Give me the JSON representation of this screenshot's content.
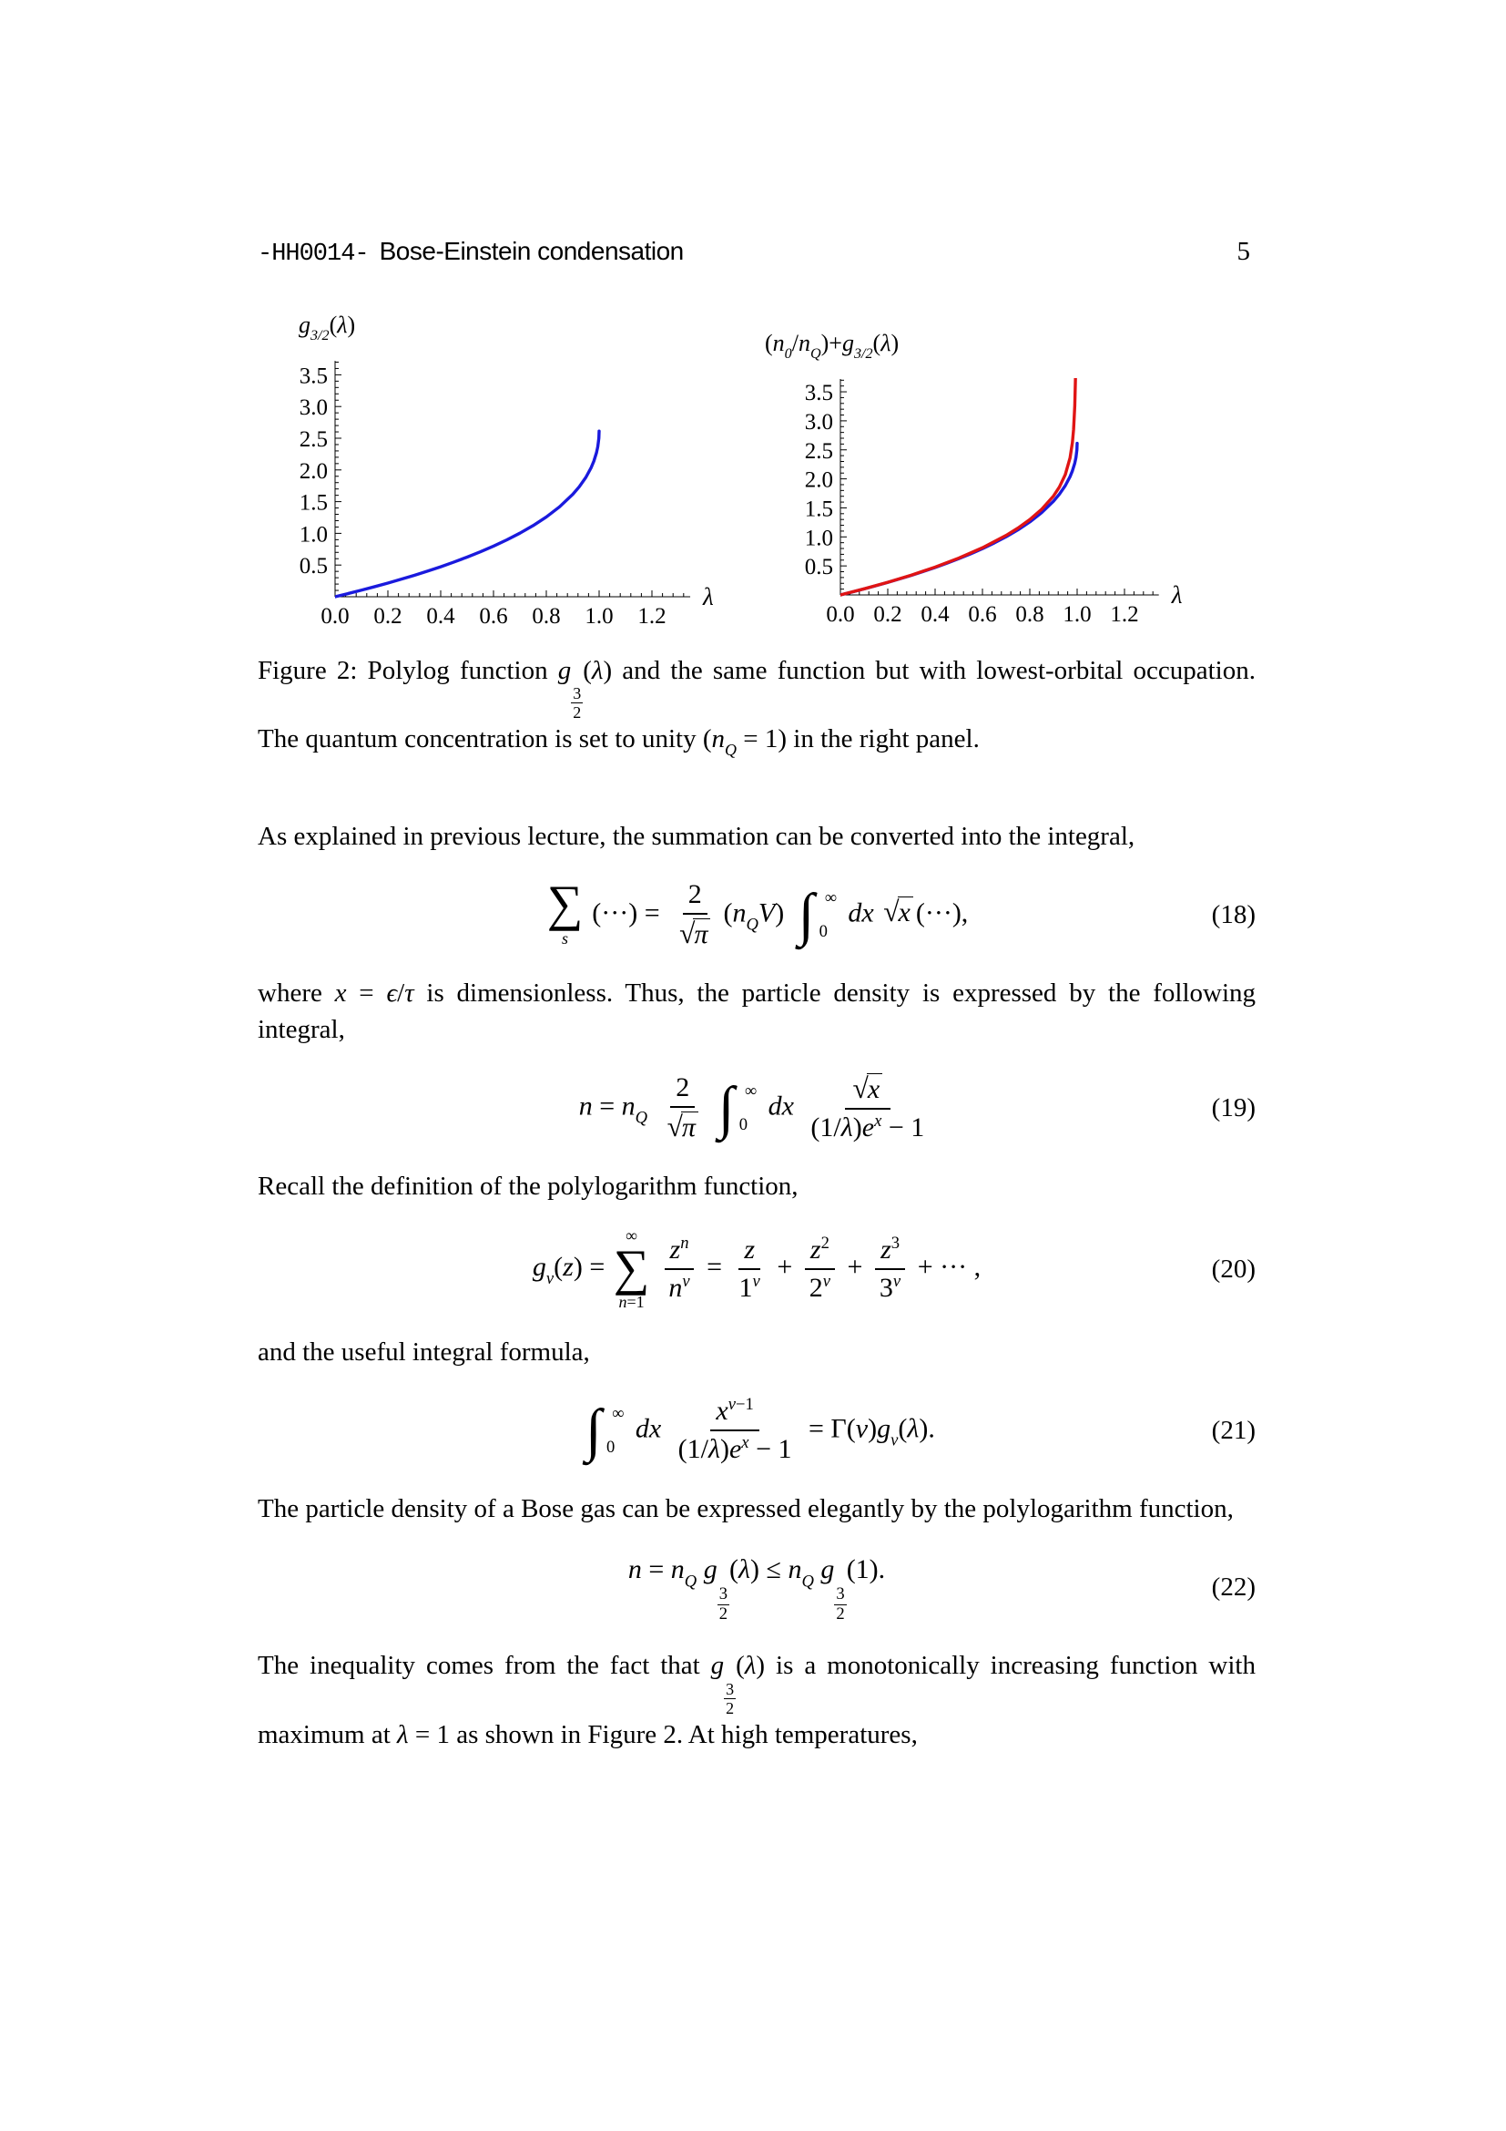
{
  "header": {
    "course_code": "-HH0014-",
    "title": "Bose-Einstein condensation",
    "page_number": "5"
  },
  "caption": {
    "segments": [
      {
        "text": "Figure 2:  Polylog function "
      },
      {
        "math": [
          {
            "sub": {
              "b": [
                {
                  "i": "g"
                }
              ],
              "x": [
                {
                  "sfrac": {
                    "n": "3",
                    "d": "2"
                  }
                }
              ]
            }
          },
          "(",
          {
            "i": "λ"
          },
          ")"
        ]
      },
      {
        "text": " and the same function but with lowest-orbital occupation.  The quantum concentration is set to unity ("
      },
      {
        "math": [
          {
            "sub": {
              "b": [
                {
                  "i": "n"
                }
              ],
              "x": [
                {
                  "i": "Q"
                }
              ]
            }
          },
          " = 1"
        ]
      },
      {
        "text": ") in the right panel."
      }
    ]
  },
  "paragraphs": [
    {
      "segments": [
        {
          "text": "As explained in previous lecture, the summation can be converted into the integral,"
        }
      ]
    },
    {
      "segments": [
        {
          "text": "where "
        },
        {
          "math": [
            {
              "i": "x"
            },
            " = ",
            {
              "i": "ϵ"
            },
            "/",
            {
              "i": "τ"
            }
          ]
        },
        {
          "text": " is dimensionless.  Thus, the particle density is expressed by the following integral,"
        }
      ]
    },
    {
      "segments": [
        {
          "text": "Recall the definition of the polylogarithm function,"
        }
      ]
    },
    {
      "segments": [
        {
          "text": "and the useful integral formula,"
        }
      ]
    },
    {
      "segments": [
        {
          "text": "The particle density of a Bose gas can be expressed elegantly by the polylogarithm function,"
        }
      ]
    },
    {
      "segments": [
        {
          "text": "The inequality comes from the fact that "
        },
        {
          "math": [
            {
              "sub": {
                "b": [
                  {
                    "i": "g"
                  }
                ],
                "x": [
                  {
                    "sfrac": {
                      "n": "3",
                      "d": "2"
                    }
                  }
                ]
              }
            },
            "(",
            {
              "i": "λ"
            },
            ")"
          ]
        },
        {
          "text": " is a monotonically increasing function with maximum at "
        },
        {
          "math": [
            {
              "i": "λ"
            },
            " = 1"
          ]
        },
        {
          "text": " as shown in Figure 2.  At high temperatures,"
        }
      ]
    }
  ],
  "equations": [
    {
      "number": "(18)",
      "math": [
        {
          "sum": {
            "lo": [
              {
                "i": "s"
              }
            ]
          }
        },
        "(···) = ",
        {
          "frac": {
            "n": [
              "2"
            ],
            "d": [
              {
                "sqrt": [
                  {
                    "i": "π"
                  }
                ]
              }
            ]
          }
        },
        "(",
        {
          "sub": {
            "b": [
              {
                "i": "n"
              }
            ],
            "x": [
              {
                "i": "Q"
              }
            ]
          }
        },
        {
          "i": "V"
        },
        ") ",
        {
          "int": {
            "lo": [
              "0"
            ],
            "hi": [
              "∞"
            ]
          }
        },
        {
          "i": "dx"
        },
        " ",
        {
          "sqrt": [
            {
              "i": "x"
            }
          ]
        },
        "(···),"
      ]
    },
    {
      "number": "(19)",
      "math": [
        {
          "i": "n"
        },
        " = ",
        {
          "sub": {
            "b": [
              {
                "i": "n"
              }
            ],
            "x": [
              {
                "i": "Q"
              }
            ]
          }
        },
        " ",
        {
          "frac": {
            "n": [
              "2"
            ],
            "d": [
              {
                "sqrt": [
                  {
                    "i": "π"
                  }
                ]
              }
            ]
          }
        },
        {
          "int": {
            "lo": [
              "0"
            ],
            "hi": [
              "∞"
            ]
          }
        },
        {
          "i": "dx"
        },
        " ",
        {
          "frac": {
            "n": [
              {
                "sqrt": [
                  {
                    "i": "x"
                  }
                ]
              }
            ],
            "d": [
              "(1/",
              {
                "i": "λ"
              },
              ")",
              {
                "sup": {
                  "b": [
                    {
                      "i": "e"
                    }
                  ],
                  "x": [
                    {
                      "i": "x"
                    }
                  ]
                }
              },
              " − 1"
            ]
          }
        }
      ]
    },
    {
      "number": "(20)",
      "math": [
        {
          "sub": {
            "b": [
              {
                "i": "g"
              }
            ],
            "x": [
              {
                "i": "ν"
              }
            ]
          }
        },
        "(",
        {
          "i": "z"
        },
        ") = ",
        {
          "sum": {
            "lo": [
              {
                "i": "n"
              },
              "=1"
            ],
            "hi": [
              "∞"
            ]
          }
        },
        {
          "frac": {
            "n": [
              {
                "sup": {
                  "b": [
                    {
                      "i": "z"
                    }
                  ],
                  "x": [
                    {
                      "i": "n"
                    }
                  ]
                }
              }
            ],
            "d": [
              {
                "sup": {
                  "b": [
                    {
                      "i": "n"
                    }
                  ],
                  "x": [
                    {
                      "i": "ν"
                    }
                  ]
                }
              }
            ]
          }
        },
        " = ",
        {
          "frac": {
            "n": [
              {
                "i": "z"
              }
            ],
            "d": [
              {
                "sup": {
                  "b": [
                    "1"
                  ],
                  "x": [
                    {
                      "i": "ν"
                    }
                  ]
                }
              }
            ]
          }
        },
        " + ",
        {
          "frac": {
            "n": [
              {
                "sup": {
                  "b": [
                    {
                      "i": "z"
                    }
                  ],
                  "x": [
                    "2"
                  ]
                }
              }
            ],
            "d": [
              {
                "sup": {
                  "b": [
                    "2"
                  ],
                  "x": [
                    {
                      "i": "ν"
                    }
                  ]
                }
              }
            ]
          }
        },
        " + ",
        {
          "frac": {
            "n": [
              {
                "sup": {
                  "b": [
                    {
                      "i": "z"
                    }
                  ],
                  "x": [
                    "3"
                  ]
                }
              }
            ],
            "d": [
              {
                "sup": {
                  "b": [
                    "3"
                  ],
                  "x": [
                    {
                      "i": "ν"
                    }
                  ]
                }
              }
            ]
          }
        },
        " + ··· ,"
      ]
    },
    {
      "number": "(21)",
      "math": [
        {
          "int": {
            "lo": [
              "0"
            ],
            "hi": [
              "∞"
            ]
          }
        },
        {
          "i": "dx"
        },
        " ",
        {
          "frac": {
            "n": [
              {
                "sup": {
                  "b": [
                    {
                      "i": "x"
                    }
                  ],
                  "x": [
                    {
                      "i": "ν"
                    },
                    "−1"
                  ]
                }
              }
            ],
            "d": [
              "(1/",
              {
                "i": "λ"
              },
              ")",
              {
                "sup": {
                  "b": [
                    {
                      "i": "e"
                    }
                  ],
                  "x": [
                    {
                      "i": "x"
                    }
                  ]
                }
              },
              " − 1"
            ]
          }
        },
        " = Γ(",
        {
          "i": "ν"
        },
        ")",
        {
          "sub": {
            "b": [
              {
                "i": "g"
              }
            ],
            "x": [
              {
                "i": "ν"
              }
            ]
          }
        },
        "(",
        {
          "i": "λ"
        },
        ")."
      ]
    },
    {
      "number": "(22)",
      "math": [
        {
          "i": "n"
        },
        " = ",
        {
          "sub": {
            "b": [
              {
                "i": "n"
              }
            ],
            "x": [
              {
                "i": "Q"
              }
            ]
          }
        },
        " ",
        {
          "sub": {
            "b": [
              {
                "i": "g"
              }
            ],
            "x": [
              {
                "sfrac": {
                  "n": "3",
                  "d": "2"
                }
              }
            ]
          }
        },
        "(",
        {
          "i": "λ"
        },
        ") ≤ ",
        {
          "sub": {
            "b": [
              {
                "i": "n"
              }
            ],
            "x": [
              {
                "i": "Q"
              }
            ]
          }
        },
        " ",
        {
          "sub": {
            "b": [
              {
                "i": "g"
              }
            ],
            "x": [
              {
                "sfrac": {
                  "n": "3",
                  "d": "2"
                }
              }
            ]
          }
        },
        "(1)."
      ]
    }
  ],
  "chart_data": [
    {
      "type": "line",
      "title": "g3/2(λ)",
      "title_math": [
        {
          "sub": {
            "b": [
              {
                "i": "g"
              }
            ],
            "x": [
              {
                "i": "3/2"
              }
            ]
          }
        },
        "(",
        {
          "i": "λ"
        },
        ")"
      ],
      "xlabel": "λ",
      "xlim": [
        0,
        1.345
      ],
      "ylim": [
        0,
        3.72
      ],
      "xticks": [
        0.0,
        0.2,
        0.4,
        0.6,
        0.8,
        1.0,
        1.2
      ],
      "yticks": [
        0.5,
        1.0,
        1.5,
        2.0,
        2.5,
        3.0,
        3.5
      ],
      "x_major_step": 0.2,
      "x_minor_step": 0.04,
      "y_major_step": 0.5,
      "y_minor_step": 0.1,
      "grid": false,
      "legend": "none",
      "series": [
        {
          "name": "polylog-g32",
          "color": "#1a1add",
          "x": [
            0,
            0.05,
            0.1,
            0.15,
            0.2,
            0.25,
            0.3,
            0.35,
            0.4,
            0.45,
            0.5,
            0.55,
            0.6,
            0.65,
            0.7,
            0.75,
            0.8,
            0.85,
            0.9,
            0.925,
            0.95,
            0.97,
            0.98,
            0.99,
            0.995,
            0.999,
            1.0
          ],
          "y": [
            0,
            0.051,
            0.104,
            0.159,
            0.216,
            0.276,
            0.338,
            0.404,
            0.473,
            0.547,
            0.625,
            0.708,
            0.798,
            0.896,
            1.003,
            1.122,
            1.258,
            1.418,
            1.614,
            1.736,
            1.884,
            2.038,
            2.138,
            2.271,
            2.368,
            2.501,
            2.612
          ]
        }
      ]
    },
    {
      "type": "line",
      "title": "(n0/nQ)+g3/2(λ)",
      "title_math": [
        "(",
        {
          "sub": {
            "b": [
              {
                "i": "n"
              }
            ],
            "x": [
              {
                "i": "0"
              }
            ]
          }
        },
        "/",
        {
          "sub": {
            "b": [
              {
                "i": "n"
              }
            ],
            "x": [
              {
                "i": "Q"
              }
            ]
          }
        },
        ")+",
        {
          "sub": {
            "b": [
              {
                "i": "g"
              }
            ],
            "x": [
              {
                "i": "3/2"
              }
            ]
          }
        },
        "(",
        {
          "i": "λ"
        },
        ")"
      ],
      "xlabel": "λ",
      "xlim": [
        0,
        1.345
      ],
      "ylim": [
        0,
        3.72
      ],
      "xticks": [
        0.0,
        0.2,
        0.4,
        0.6,
        0.8,
        1.0,
        1.2
      ],
      "yticks": [
        0.5,
        1.0,
        1.5,
        2.0,
        2.5,
        3.0,
        3.5
      ],
      "x_major_step": 0.2,
      "x_minor_step": 0.04,
      "y_major_step": 0.5,
      "y_minor_step": 0.1,
      "grid": false,
      "legend": "none",
      "series": [
        {
          "name": "polylog-g32",
          "color": "#1a1add",
          "x": [
            0,
            0.05,
            0.1,
            0.15,
            0.2,
            0.25,
            0.3,
            0.35,
            0.4,
            0.45,
            0.5,
            0.55,
            0.6,
            0.65,
            0.7,
            0.75,
            0.8,
            0.85,
            0.9,
            0.925,
            0.95,
            0.97,
            0.98,
            0.99,
            0.995,
            0.999,
            1.0
          ],
          "y": [
            0,
            0.051,
            0.104,
            0.159,
            0.216,
            0.276,
            0.338,
            0.404,
            0.473,
            0.547,
            0.625,
            0.708,
            0.798,
            0.896,
            1.003,
            1.122,
            1.258,
            1.418,
            1.614,
            1.736,
            1.884,
            2.038,
            2.138,
            2.271,
            2.368,
            2.501,
            2.612
          ]
        },
        {
          "name": "g32-plus-condensate",
          "color": "#e01414",
          "x": [
            0,
            0.1,
            0.2,
            0.3,
            0.4,
            0.5,
            0.6,
            0.7,
            0.75,
            0.8,
            0.85,
            0.9,
            0.925,
            0.95,
            0.97,
            0.98,
            0.985,
            0.99,
            0.993,
            0.995
          ],
          "y": [
            0,
            0.105,
            0.218,
            0.341,
            0.48,
            0.635,
            0.813,
            1.026,
            1.152,
            1.298,
            1.475,
            1.704,
            1.859,
            2.074,
            2.361,
            2.628,
            2.855,
            3.261,
            3.744,
            4.358
          ]
        }
      ]
    }
  ]
}
